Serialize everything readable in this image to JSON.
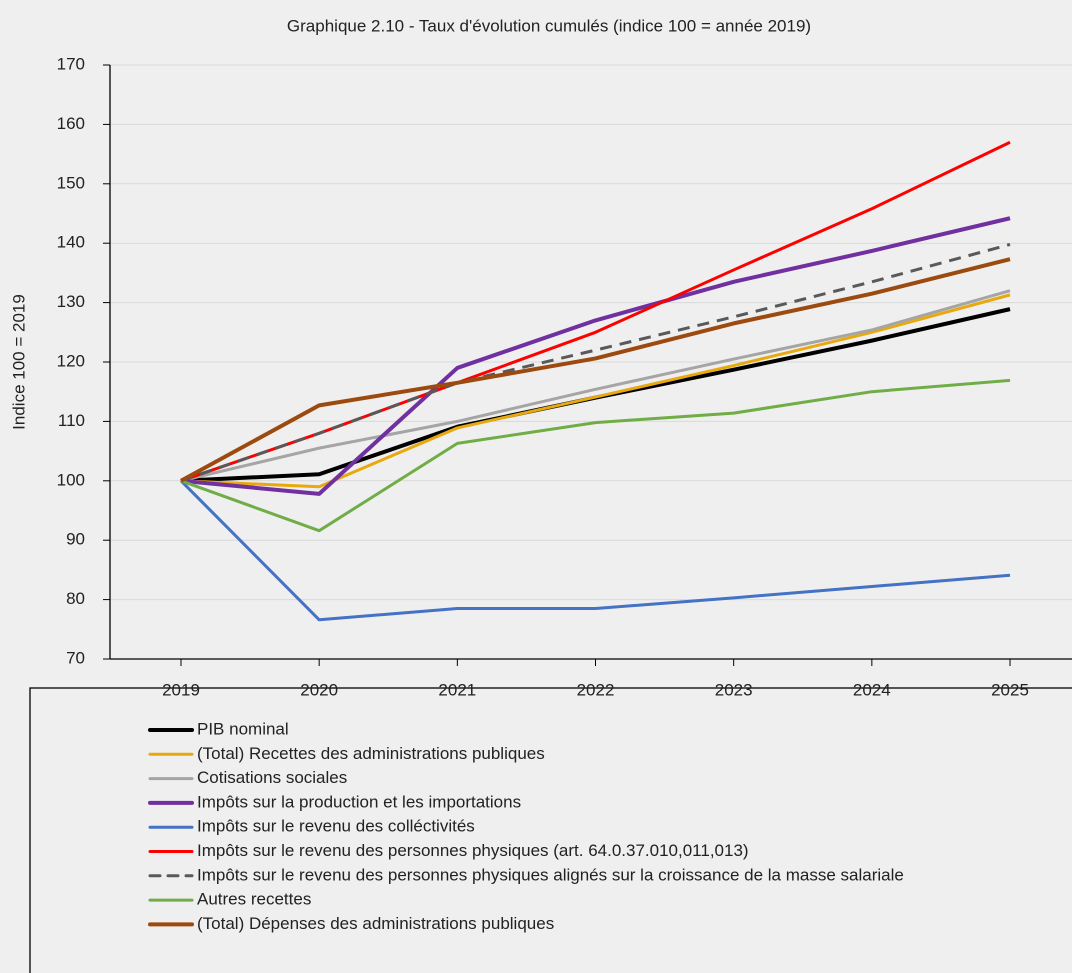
{
  "chart_data": {
    "type": "line",
    "title": "Graphique 2.10 - Taux d'évolution cumulés (indice 100 = année 2019)",
    "y_label": "Indice 100 = 2019",
    "categories": [
      "2019",
      "2020",
      "2021",
      "2022",
      "2023",
      "2024",
      "2025"
    ],
    "ylim": [
      70,
      170
    ],
    "yticks": [
      70,
      80,
      90,
      100,
      110,
      120,
      130,
      140,
      150,
      160,
      170
    ],
    "grid": true,
    "legend": "bottom",
    "series": [
      {
        "name": "PIB nominal",
        "color": "#000000",
        "width": 4,
        "values": [
          100,
          101.1,
          109.1,
          114,
          118.7,
          123.6,
          128.9
        ]
      },
      {
        "name": "(Total) Recettes des administrations publiques",
        "color": "#e8a90e",
        "width": 3,
        "values": [
          100,
          99,
          108.9,
          114.1,
          119.4,
          125,
          131.3
        ]
      },
      {
        "name": "Cotisations sociales",
        "color": "#a5a5a5",
        "width": 3,
        "values": [
          100,
          105.5,
          110,
          115.4,
          120.5,
          125.4,
          132
        ]
      },
      {
        "name": "Impôts sur la production et les importations",
        "color": "#7030a0",
        "width": 4,
        "values": [
          100,
          97.8,
          119,
          127,
          133.5,
          138.7,
          144.2
        ]
      },
      {
        "name": "Impôts sur le revenu des colléctivités",
        "color": "#4472c4",
        "width": 3,
        "values": [
          100,
          76.6,
          78.5,
          78.5,
          80.3,
          82.2,
          84.1
        ]
      },
      {
        "name": "Impôts sur le revenu des personnes physiques (art. 64.0.37.010,011,013)",
        "color": "#ff0000",
        "width": 3,
        "values": [
          100,
          108,
          116.5,
          125,
          135.5,
          145.8,
          157
        ]
      },
      {
        "name": "Impôts sur le revenu des personnes physiques alignés sur la croissance de la masse salariale",
        "color": "#595959",
        "width": 3,
        "dashed": true,
        "values": [
          100,
          108,
          116.5,
          122,
          127.6,
          133.5,
          139.8
        ]
      },
      {
        "name": "Autres recettes",
        "color": "#70ad47",
        "width": 3,
        "values": [
          100,
          91.6,
          106.3,
          109.8,
          111.4,
          115,
          116.9
        ]
      },
      {
        "name": "(Total) Dépenses des administrations publiques",
        "color": "#9c4a10",
        "width": 4,
        "values": [
          100,
          112.7,
          116.5,
          120.6,
          126.5,
          131.5,
          137.3
        ]
      }
    ]
  }
}
